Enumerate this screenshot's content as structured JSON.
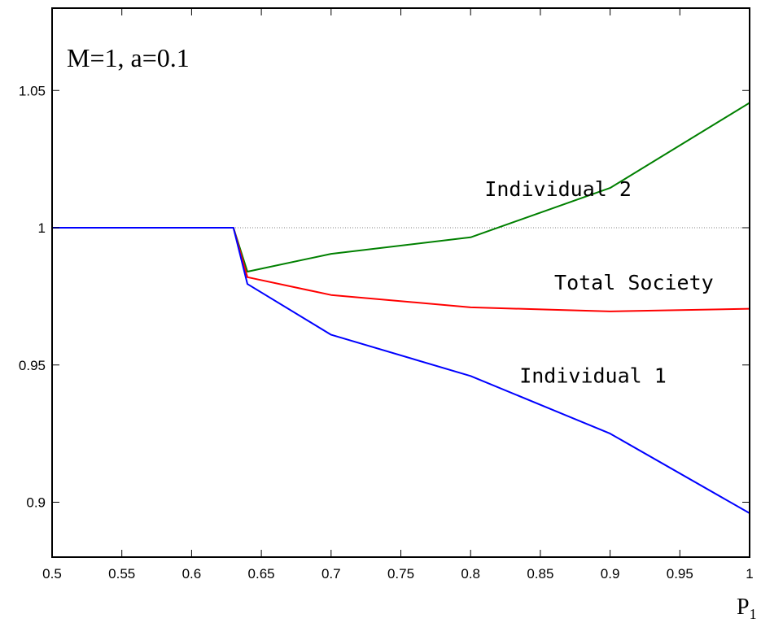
{
  "chart_data": {
    "type": "line",
    "title": "",
    "annotation": "M=1, a=0.1",
    "xlabel": "P",
    "xlabel_subscript": "1",
    "ylabel": "",
    "xlim": [
      0.5,
      1.0
    ],
    "ylim": [
      0.88,
      1.08
    ],
    "x_ticks": [
      0.5,
      0.55,
      0.6,
      0.65,
      0.7,
      0.75,
      0.8,
      0.85,
      0.9,
      0.95,
      1.0
    ],
    "x_tick_labels": [
      "0.5",
      "0.55",
      "0.6",
      "0.65",
      "0.7",
      "0.75",
      "0.8",
      "0.85",
      "0.9",
      "0.95",
      "1"
    ],
    "y_ticks": [
      0.9,
      0.95,
      1.0,
      1.05
    ],
    "y_tick_labels": [
      "0.9",
      "0.95",
      "1",
      "1.05"
    ],
    "grid": false,
    "reference_line": {
      "y": 1.0,
      "style": "dotted",
      "color": "#808080"
    },
    "series": [
      {
        "name": "Individual 2",
        "color": "#008000",
        "x": [
          0.5,
          0.63,
          0.64,
          0.7,
          0.8,
          0.9,
          1.0
        ],
        "y": [
          1.0,
          1.0,
          0.984,
          0.9905,
          0.9965,
          1.0145,
          1.0455
        ]
      },
      {
        "name": "Total Society",
        "color": "#ff0000",
        "x": [
          0.5,
          0.63,
          0.64,
          0.7,
          0.8,
          0.9,
          1.0
        ],
        "y": [
          1.0,
          1.0,
          0.982,
          0.9755,
          0.971,
          0.9695,
          0.9705
        ]
      },
      {
        "name": "Individual 1",
        "color": "#0000ff",
        "x": [
          0.5,
          0.63,
          0.64,
          0.7,
          0.8,
          0.9,
          1.0
        ],
        "y": [
          1.0,
          1.0,
          0.9795,
          0.961,
          0.946,
          0.925,
          0.896
        ]
      }
    ],
    "series_labels": [
      {
        "text": "Individual 2",
        "x": 0.81,
        "y": 1.0115
      },
      {
        "text": "Total Society",
        "x": 0.86,
        "y": 0.9775
      },
      {
        "text": "Individual 1",
        "x": 0.835,
        "y": 0.9435
      }
    ]
  }
}
